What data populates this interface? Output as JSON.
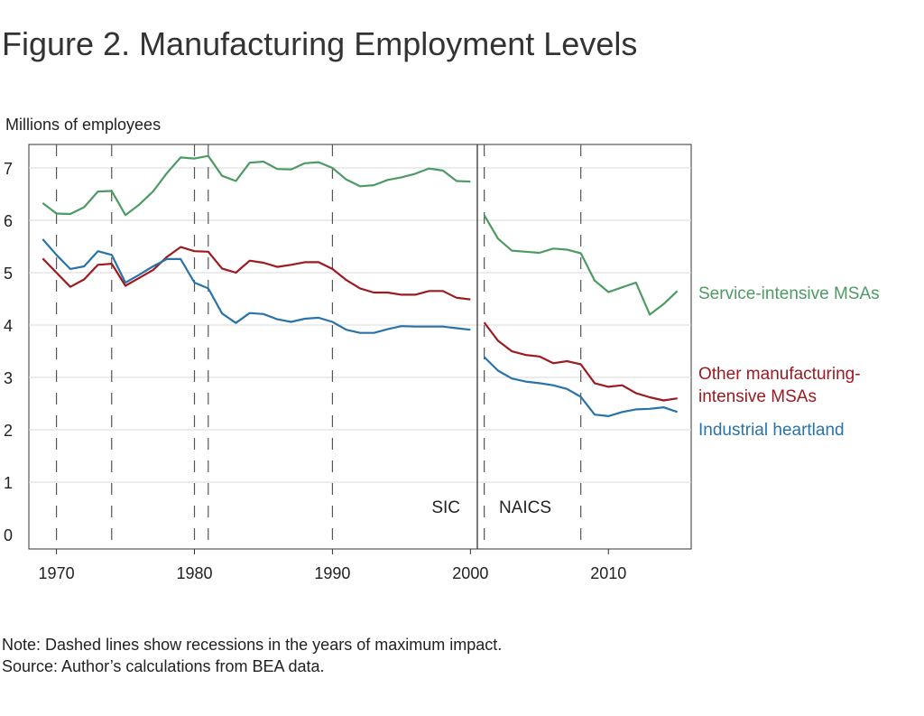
{
  "title": "Figure 2. Manufacturing Employment Levels",
  "note": "Note: Dashed lines show recessions in the years of maximum impact.",
  "source": "Source: Author’s calculations from BEA data.",
  "colors": {
    "service": "#4e9a63",
    "other": "#9b1b20",
    "heartland": "#2a73a8"
  },
  "chart_data": {
    "type": "line",
    "ylabel": "Millions of employees",
    "xlim": [
      1968,
      2016
    ],
    "ylim": [
      0,
      7.5
    ],
    "x_ticks": [
      1970,
      1980,
      1990,
      2000,
      2010
    ],
    "y_ticks": [
      0,
      1,
      2,
      3,
      4,
      5,
      6,
      7
    ],
    "grid": "horizontal",
    "recession_years": [
      1970,
      1974,
      1980,
      1981,
      1990,
      2001,
      2008
    ],
    "break_year": 2000.5,
    "regime_labels": [
      "SIC",
      "NAICS"
    ],
    "series": [
      {
        "name": "Service-intensive MSAs",
        "color": "#4e9a63",
        "segments": [
          {
            "x": [
              1969,
              1970,
              1971,
              1972,
              1973,
              1974,
              1975,
              1976,
              1977,
              1978,
              1979,
              1980,
              1981,
              1982,
              1983,
              1984,
              1985,
              1986,
              1987,
              1988,
              1989,
              1990,
              1991,
              1992,
              1993,
              1994,
              1995,
              1996,
              1997,
              1998,
              1999,
              2000
            ],
            "y": [
              6.33,
              6.13,
              6.12,
              6.25,
              6.55,
              6.56,
              6.1,
              6.3,
              6.55,
              6.9,
              7.2,
              7.18,
              7.23,
              6.85,
              6.75,
              7.1,
              7.12,
              6.98,
              6.97,
              7.09,
              7.11,
              7.0,
              6.78,
              6.65,
              6.67,
              6.77,
              6.82,
              6.89,
              6.99,
              6.95,
              6.75,
              6.74
            ]
          },
          {
            "x": [
              2001,
              2002,
              2003,
              2004,
              2005,
              2006,
              2007,
              2008,
              2009,
              2010,
              2011,
              2012,
              2013,
              2014,
              2015
            ],
            "y": [
              6.1,
              5.65,
              5.42,
              5.4,
              5.38,
              5.46,
              5.44,
              5.37,
              4.85,
              4.63,
              4.72,
              4.81,
              4.2,
              4.4,
              4.65
            ]
          }
        ]
      },
      {
        "name": "Other manufacturing-intensive MSAs",
        "color": "#9b1b20",
        "segments": [
          {
            "x": [
              1969,
              1970,
              1971,
              1972,
              1973,
              1974,
              1975,
              1976,
              1977,
              1978,
              1979,
              1980,
              1981,
              1982,
              1983,
              1984,
              1985,
              1986,
              1987,
              1988,
              1989,
              1990,
              1991,
              1992,
              1993,
              1994,
              1995,
              1996,
              1997,
              1998,
              1999,
              2000
            ],
            "y": [
              5.27,
              5.0,
              4.73,
              4.87,
              5.15,
              5.17,
              4.75,
              4.9,
              5.05,
              5.3,
              5.49,
              5.41,
              5.4,
              5.08,
              5.0,
              5.23,
              5.19,
              5.11,
              5.15,
              5.2,
              5.2,
              5.07,
              4.86,
              4.7,
              4.62,
              4.62,
              4.58,
              4.58,
              4.65,
              4.65,
              4.52,
              4.49
            ]
          },
          {
            "x": [
              2001,
              2002,
              2003,
              2004,
              2005,
              2006,
              2007,
              2008,
              2009,
              2010,
              2011,
              2012,
              2013,
              2014,
              2015
            ],
            "y": [
              4.05,
              3.7,
              3.5,
              3.43,
              3.4,
              3.27,
              3.31,
              3.25,
              2.89,
              2.82,
              2.85,
              2.7,
              2.62,
              2.56,
              2.6
            ]
          }
        ]
      },
      {
        "name": "Industrial heartland",
        "color": "#2a73a8",
        "segments": [
          {
            "x": [
              1969,
              1970,
              1971,
              1972,
              1973,
              1974,
              1975,
              1976,
              1977,
              1978,
              1979,
              1980,
              1981,
              1982,
              1983,
              1984,
              1985,
              1986,
              1987,
              1988,
              1989,
              1990,
              1991,
              1992,
              1993,
              1994,
              1995,
              1996,
              1997,
              1998,
              1999,
              2000
            ],
            "y": [
              5.64,
              5.34,
              5.07,
              5.12,
              5.41,
              5.34,
              4.81,
              4.96,
              5.12,
              5.26,
              5.26,
              4.81,
              4.7,
              4.22,
              4.04,
              4.23,
              4.21,
              4.11,
              4.06,
              4.12,
              4.14,
              4.06,
              3.91,
              3.85,
              3.85,
              3.92,
              3.98,
              3.97,
              3.97,
              3.97,
              3.94,
              3.91
            ]
          },
          {
            "x": [
              2001,
              2002,
              2003,
              2004,
              2005,
              2006,
              2007,
              2008,
              2009,
              2010,
              2011,
              2012,
              2013,
              2014,
              2015
            ],
            "y": [
              3.39,
              3.13,
              2.98,
              2.92,
              2.89,
              2.85,
              2.78,
              2.63,
              2.29,
              2.26,
              2.34,
              2.39,
              2.4,
              2.43,
              2.34
            ]
          }
        ]
      }
    ]
  }
}
